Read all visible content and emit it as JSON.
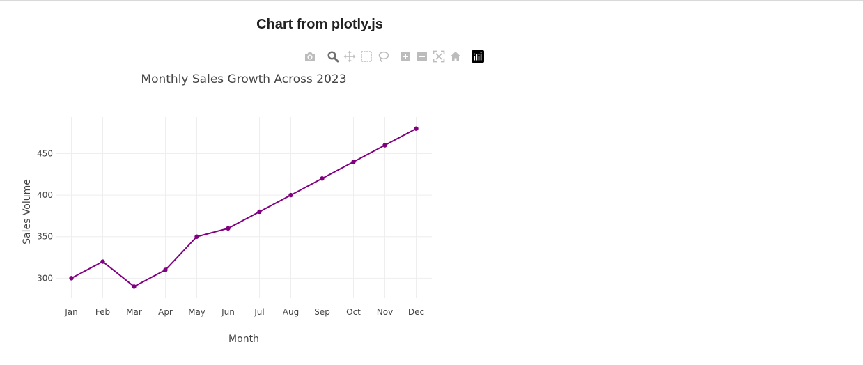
{
  "page": {
    "title": "Chart from plotly.js"
  },
  "toolbar": {
    "icons": [
      "camera-icon",
      "zoom-icon",
      "pan-icon",
      "box-select-icon",
      "lasso-select-icon",
      "zoom-in-icon",
      "zoom-out-icon",
      "autoscale-icon",
      "reset-axes-icon",
      "plotly-logo-icon"
    ],
    "color_inactive": "#bcbcbc",
    "color_active": "#6e6e6e",
    "active": "zoom-icon"
  },
  "chart_data": {
    "type": "line",
    "title": "Monthly Sales Growth Across 2023",
    "xlabel": "Month",
    "ylabel": "Sales Volume",
    "categories": [
      "Jan",
      "Feb",
      "Mar",
      "Apr",
      "May",
      "Jun",
      "Jul",
      "Aug",
      "Sep",
      "Oct",
      "Nov",
      "Dec"
    ],
    "series": [
      {
        "values": [
          300,
          320,
          290,
          310,
          350,
          360,
          380,
          400,
          420,
          440,
          460,
          480
        ],
        "color": "#800080"
      }
    ],
    "yticks": [
      300,
      350,
      400,
      450
    ],
    "ylim": [
      276,
      494
    ],
    "grid": true,
    "legend": "none",
    "mode": "lines+markers"
  }
}
